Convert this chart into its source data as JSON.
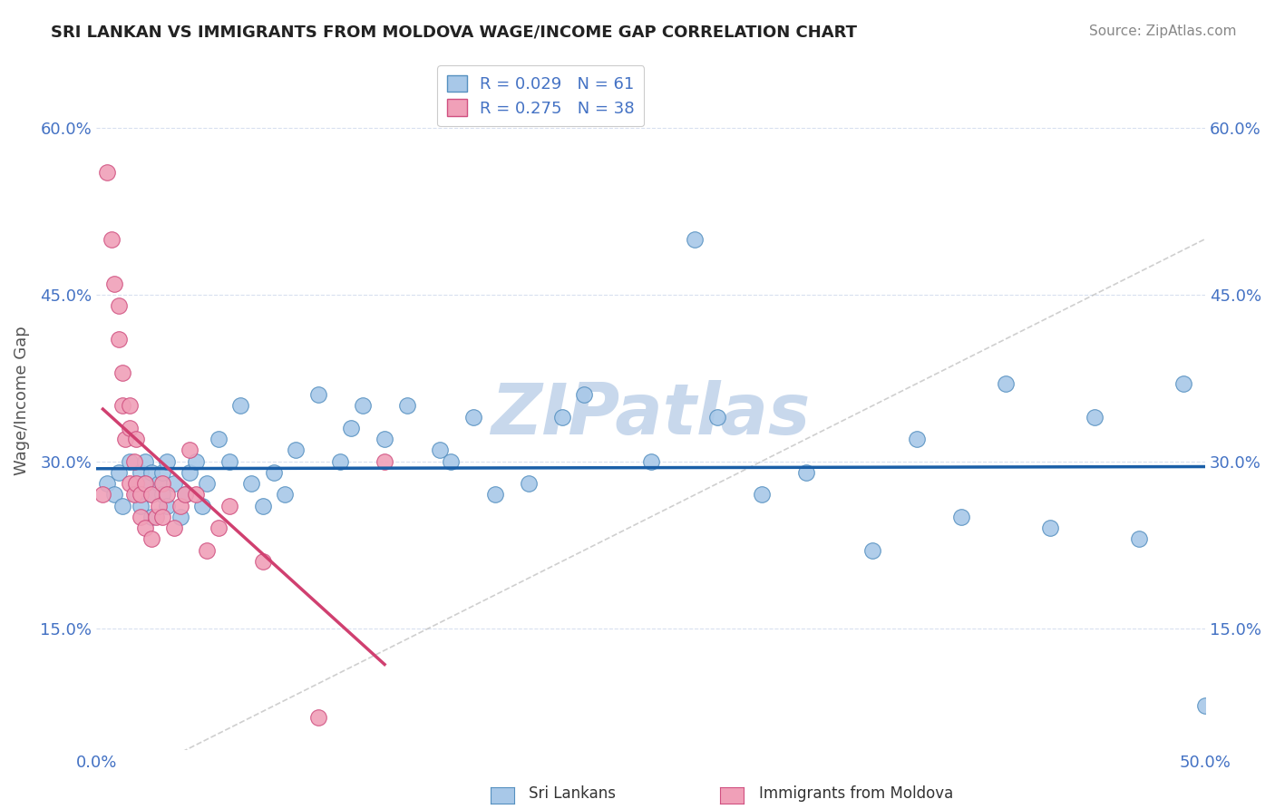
{
  "title": "SRI LANKAN VS IMMIGRANTS FROM MOLDOVA WAGE/INCOME GAP CORRELATION CHART",
  "source": "Source: ZipAtlas.com",
  "ylabel": "Wage/Income Gap",
  "xlim": [
    0.0,
    0.5
  ],
  "ylim": [
    0.04,
    0.67
  ],
  "yticks": [
    0.15,
    0.3,
    0.45,
    0.6
  ],
  "yticklabels": [
    "15.0%",
    "30.0%",
    "45.0%",
    "60.0%"
  ],
  "xtick_show": [
    0.0,
    0.5
  ],
  "xticklabels_show": [
    "0.0%",
    "50.0%"
  ],
  "legend_labels": [
    "Sri Lankans",
    "Immigrants from Moldova"
  ],
  "R_blue": 0.029,
  "N_blue": 61,
  "R_pink": 0.275,
  "N_pink": 38,
  "blue_color": "#a8c8e8",
  "blue_edge": "#5590c0",
  "pink_color": "#f0a0b8",
  "pink_edge": "#d05080",
  "blue_line_color": "#1a5fa8",
  "pink_line_color": "#d04070",
  "watermark": "ZIPatlas",
  "watermark_color": "#c8d8ec",
  "background_color": "#ffffff",
  "title_color": "#222222",
  "axis_color": "#4472c4",
  "grid_color": "#d8e0f0",
  "blue_scatter_x": [
    0.005,
    0.008,
    0.01,
    0.012,
    0.015,
    0.018,
    0.018,
    0.02,
    0.02,
    0.022,
    0.022,
    0.025,
    0.025,
    0.025,
    0.028,
    0.03,
    0.03,
    0.032,
    0.032,
    0.035,
    0.038,
    0.04,
    0.042,
    0.045,
    0.048,
    0.05,
    0.055,
    0.06,
    0.065,
    0.07,
    0.075,
    0.08,
    0.085,
    0.09,
    0.1,
    0.11,
    0.115,
    0.12,
    0.13,
    0.14,
    0.155,
    0.16,
    0.17,
    0.18,
    0.195,
    0.21,
    0.22,
    0.25,
    0.27,
    0.28,
    0.3,
    0.32,
    0.35,
    0.37,
    0.39,
    0.41,
    0.43,
    0.45,
    0.47,
    0.49,
    0.5
  ],
  "blue_scatter_y": [
    0.28,
    0.27,
    0.29,
    0.26,
    0.3,
    0.28,
    0.27,
    0.29,
    0.26,
    0.3,
    0.28,
    0.27,
    0.29,
    0.25,
    0.28,
    0.29,
    0.27,
    0.3,
    0.26,
    0.28,
    0.25,
    0.27,
    0.29,
    0.3,
    0.26,
    0.28,
    0.32,
    0.3,
    0.35,
    0.28,
    0.26,
    0.29,
    0.27,
    0.31,
    0.36,
    0.3,
    0.33,
    0.35,
    0.32,
    0.35,
    0.31,
    0.3,
    0.34,
    0.27,
    0.28,
    0.34,
    0.36,
    0.3,
    0.5,
    0.34,
    0.27,
    0.29,
    0.22,
    0.32,
    0.25,
    0.37,
    0.24,
    0.34,
    0.23,
    0.37,
    0.08
  ],
  "pink_scatter_x": [
    0.003,
    0.005,
    0.007,
    0.008,
    0.01,
    0.01,
    0.012,
    0.012,
    0.013,
    0.015,
    0.015,
    0.015,
    0.017,
    0.017,
    0.018,
    0.018,
    0.02,
    0.02,
    0.022,
    0.022,
    0.025,
    0.025,
    0.027,
    0.028,
    0.03,
    0.03,
    0.032,
    0.035,
    0.038,
    0.04,
    0.042,
    0.045,
    0.05,
    0.055,
    0.06,
    0.075,
    0.1,
    0.13
  ],
  "pink_scatter_y": [
    0.27,
    0.56,
    0.5,
    0.46,
    0.44,
    0.41,
    0.38,
    0.35,
    0.32,
    0.35,
    0.33,
    0.28,
    0.3,
    0.27,
    0.32,
    0.28,
    0.27,
    0.25,
    0.28,
    0.24,
    0.27,
    0.23,
    0.25,
    0.26,
    0.28,
    0.25,
    0.27,
    0.24,
    0.26,
    0.27,
    0.31,
    0.27,
    0.22,
    0.24,
    0.26,
    0.21,
    0.07,
    0.3
  ]
}
